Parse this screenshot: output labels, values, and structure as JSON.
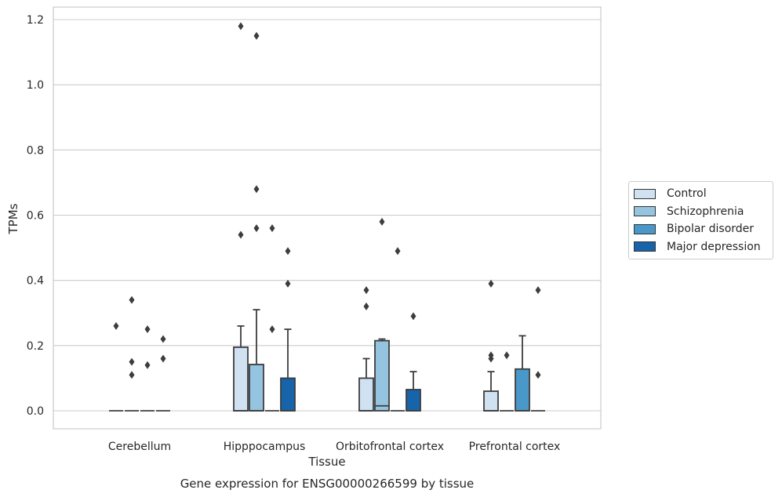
{
  "chart_data": {
    "type": "box",
    "title": "",
    "caption": "Gene expression for ENSG00000266599 by tissue",
    "xlabel": "Tissue",
    "ylabel": "TPMs",
    "ylim": [
      -0.055,
      1.24
    ],
    "yticks": [
      0.0,
      0.2,
      0.4,
      0.6,
      0.8,
      1.0,
      1.2
    ],
    "ytick_labels": [
      "0.0",
      "0.2",
      "0.4",
      "0.6",
      "0.8",
      "1.0",
      "1.2"
    ],
    "grid": "horizontal",
    "legend_position": "right-center",
    "categories": [
      "Cerebellum",
      "Hipppocampus",
      "Orbitofrontal cortex",
      "Prefrontal cortex"
    ],
    "series": [
      {
        "name": "Control",
        "color": "#d0e1f2",
        "boxes": [
          {
            "q1": 0,
            "median": 0,
            "q3": 0,
            "whisker_low": 0,
            "whisker_high": 0,
            "outliers": [
              0.26
            ]
          },
          {
            "q1": 0,
            "median": 0,
            "q3": 0.195,
            "whisker_low": 0,
            "whisker_high": 0.26,
            "outliers": [
              1.18,
              0.54
            ]
          },
          {
            "q1": 0,
            "median": 0,
            "q3": 0.1,
            "whisker_low": 0,
            "whisker_high": 0.16,
            "outliers": [
              0.37,
              0.32
            ]
          },
          {
            "q1": 0,
            "median": 0,
            "q3": 0.06,
            "whisker_low": 0,
            "whisker_high": 0.12,
            "outliers": [
              0.39,
              0.17,
              0.16
            ]
          }
        ]
      },
      {
        "name": "Schizophrenia",
        "color": "#94c4df",
        "boxes": [
          {
            "q1": 0,
            "median": 0,
            "q3": 0,
            "whisker_low": 0,
            "whisker_high": 0,
            "outliers": [
              0.34,
              0.15,
              0.11
            ]
          },
          {
            "q1": 0,
            "median": 0,
            "q3": 0.142,
            "whisker_low": 0,
            "whisker_high": 0.31,
            "outliers": [
              1.15,
              0.68,
              0.56
            ]
          },
          {
            "q1": 0,
            "median": 0.015,
            "q3": 0.215,
            "whisker_low": 0,
            "whisker_high": 0.22,
            "outliers": [
              0.58
            ]
          },
          {
            "q1": 0,
            "median": 0,
            "q3": 0,
            "whisker_low": 0,
            "whisker_high": 0,
            "outliers": [
              0.17
            ]
          }
        ]
      },
      {
        "name": "Bipolar disorder",
        "color": "#4a98c9",
        "boxes": [
          {
            "q1": 0,
            "median": 0,
            "q3": 0,
            "whisker_low": 0,
            "whisker_high": 0,
            "outliers": [
              0.25,
              0.14
            ]
          },
          {
            "q1": 0,
            "median": 0,
            "q3": 0,
            "whisker_low": 0,
            "whisker_high": 0,
            "outliers": [
              0.56,
              0.25
            ]
          },
          {
            "q1": 0,
            "median": 0,
            "q3": 0,
            "whisker_low": 0,
            "whisker_high": 0,
            "outliers": [
              0.49
            ]
          },
          {
            "q1": 0,
            "median": 0,
            "q3": 0.128,
            "whisker_low": 0,
            "whisker_high": 0.23,
            "outliers": []
          }
        ]
      },
      {
        "name": "Major depression",
        "color": "#1764ab",
        "boxes": [
          {
            "q1": 0,
            "median": 0,
            "q3": 0,
            "whisker_low": 0,
            "whisker_high": 0,
            "outliers": [
              0.22,
              0.16
            ]
          },
          {
            "q1": 0,
            "median": 0,
            "q3": 0.1,
            "whisker_low": 0,
            "whisker_high": 0.25,
            "outliers": [
              0.49,
              0.39
            ]
          },
          {
            "q1": 0,
            "median": 0,
            "q3": 0.065,
            "whisker_low": 0,
            "whisker_high": 0.12,
            "outliers": [
              0.29
            ]
          },
          {
            "q1": 0,
            "median": 0,
            "q3": 0,
            "whisker_low": 0,
            "whisker_high": 0,
            "outliers": [
              0.37,
              0.11
            ]
          }
        ]
      }
    ]
  }
}
